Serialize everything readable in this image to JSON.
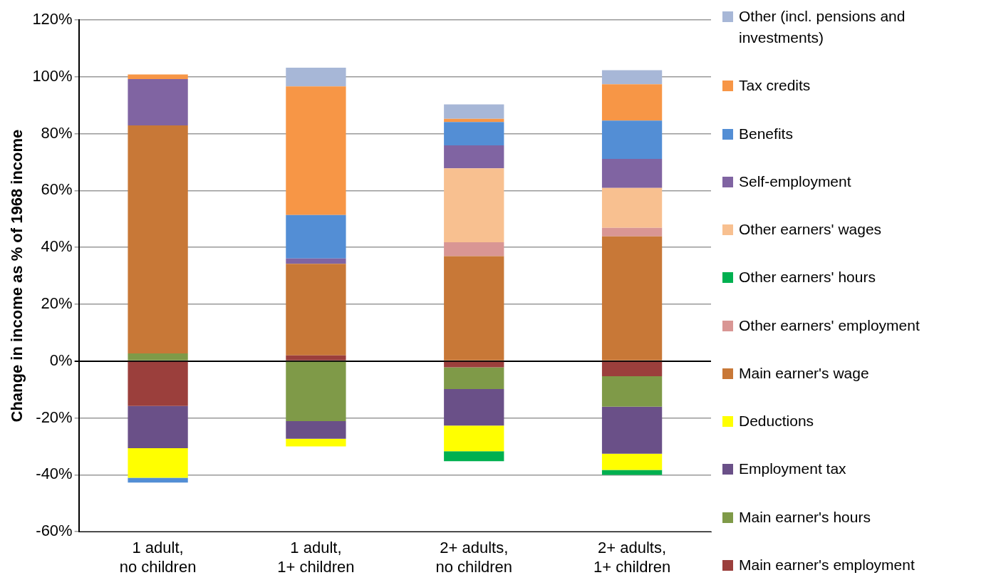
{
  "chart_data": {
    "type": "bar",
    "stacked": true,
    "ylabel": "Change in income as % of 1968 income",
    "categories": [
      "1 adult, no children",
      "1 adult, 1+ children",
      "2+ adults, no children",
      "2+ adults, 1+ children"
    ],
    "ylim": [
      -60,
      120
    ],
    "yticks": [
      {
        "value": -60,
        "label": "-60%"
      },
      {
        "value": -40,
        "label": "-40%"
      },
      {
        "value": -20,
        "label": "-20%"
      },
      {
        "value": 0,
        "label": "0%"
      },
      {
        "value": 20,
        "label": "20%"
      },
      {
        "value": 40,
        "label": "40%"
      },
      {
        "value": 60,
        "label": "60%"
      },
      {
        "value": 80,
        "label": "80%"
      },
      {
        "value": 100,
        "label": "100%"
      },
      {
        "value": 120,
        "label": "120%"
      }
    ],
    "grid": "y",
    "legend": "right",
    "series": [
      {
        "name": "Main earner's employment",
        "color": "#9b3f3c",
        "values": [
          -15.8,
          2,
          -2.2,
          -5.3
        ]
      },
      {
        "name": "Main earner's hours",
        "color": "#7f9a48",
        "values": [
          2.7,
          -21.1,
          -7.6,
          -10.7
        ]
      },
      {
        "name": "Employment tax",
        "color": "#6a5088",
        "values": [
          -14.8,
          -6.2,
          -12.9,
          -16.6
        ]
      },
      {
        "name": "Deductions",
        "color": "#ffff00",
        "values": [
          -10.4,
          -2.7,
          -9,
          -5.7
        ]
      },
      {
        "name": "Main earner's wage",
        "color": "#c87837",
        "values": [
          80.2,
          32.2,
          36.9,
          43.9
        ]
      },
      {
        "name": "Other earners' employment",
        "color": "#d99694",
        "values": [
          0,
          0,
          4.9,
          3
        ]
      },
      {
        "name": "Other earners' hours",
        "color": "#00b050",
        "values": [
          0,
          0,
          -3.5,
          -1.7
        ]
      },
      {
        "name": "Other earners' wages",
        "color": "#f8c090",
        "values": [
          0,
          0,
          26,
          14
        ]
      },
      {
        "name": "Self-employment",
        "color": "#8064a2",
        "values": [
          16.3,
          1.9,
          8.1,
          10.2
        ]
      },
      {
        "name": "Benefits",
        "color": "#538ed5",
        "values": [
          -1.7,
          15.3,
          8.2,
          13.5
        ]
      },
      {
        "name": "Tax credits",
        "color": "#f79646",
        "values": [
          1.6,
          45.2,
          1.1,
          12.8
        ]
      },
      {
        "name": "Other (incl. pensions and investments)",
        "color": "#a7b7d7",
        "values": [
          0,
          6.6,
          5.1,
          4.9
        ]
      }
    ]
  }
}
